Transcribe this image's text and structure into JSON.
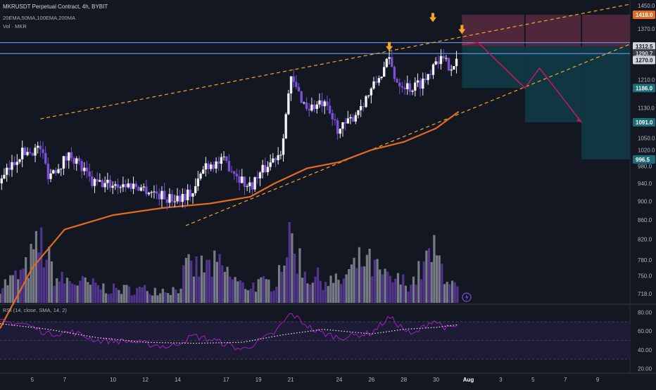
{
  "header": {
    "title": "MKRUSDT Perpetual Contract, 4h, BYBIT",
    "ema_label": "20EMA,50MA,100EMA,200MA",
    "vol_label": "Vol · MKR"
  },
  "rsi_label": "RSI (14, close, SMA, 14, 2)",
  "colors": {
    "background": "#131722",
    "bull_candle": "#f2f2f7",
    "bear_candle": "#7b4fd6",
    "ma": "#e36b1e",
    "trendline": "#f5a623",
    "level_line": "#5b8fe6",
    "zigzag": "#c2185b",
    "rsi_line": "#a020c0",
    "rsi_band": "#1e1b36",
    "rsi_ma": "#e6e6e6",
    "stop_zone": "#5a2a3e",
    "target_zone": "#0f3c46",
    "marker": "#f5a623"
  },
  "chart_data": [
    {
      "type": "candlestick",
      "symbol": "MKRUSDT Perpetual Contract",
      "timeframe": "4h",
      "exchange": "BYBIT",
      "x_axis": {
        "ticks": [
          {
            "label": "5",
            "day": 5
          },
          {
            "label": "7",
            "day": 7
          },
          {
            "label": "10",
            "day": 10
          },
          {
            "label": "12",
            "day": 12
          },
          {
            "label": "14",
            "day": 14
          },
          {
            "label": "17",
            "day": 17
          },
          {
            "label": "19",
            "day": 19
          },
          {
            "label": "21",
            "day": 21
          },
          {
            "label": "24",
            "day": 24
          },
          {
            "label": "26",
            "day": 26
          },
          {
            "label": "28",
            "day": 28
          },
          {
            "label": "30",
            "day": 30
          },
          {
            "label": "Aug",
            "day": 32,
            "bold": true
          },
          {
            "label": "3",
            "day": 34
          },
          {
            "label": "5",
            "day": 36
          },
          {
            "label": "7",
            "day": 38
          },
          {
            "label": "9",
            "day": 40
          }
        ]
      },
      "y_axis": {
        "ticks": [
          1450,
          1370,
          1290,
          1210,
          1130,
          1050,
          1020,
          980,
          940,
          900,
          860,
          820,
          780,
          750,
          718
        ]
      },
      "price_labels": [
        {
          "text": "1418.0",
          "value": 1418,
          "style": "orange"
        },
        {
          "text": "1312.5",
          "value": 1312.5,
          "style": "light"
        },
        {
          "text": "1290.7",
          "value": 1290.7,
          "style": "dim"
        },
        {
          "text": "1270.0",
          "value": 1270,
          "style": "light"
        },
        {
          "text": "1186.0",
          "value": 1186,
          "style": "teal"
        },
        {
          "text": "1091.0",
          "value": 1091,
          "style": "teal"
        },
        {
          "text": "996.5",
          "value": 996.5,
          "style": "teal"
        }
      ],
      "candle_keypoints": [
        {
          "day": 3.0,
          "price": 940
        },
        {
          "day": 4.2,
          "price": 1010
        },
        {
          "day": 5.5,
          "price": 1025
        },
        {
          "day": 6.0,
          "price": 960
        },
        {
          "day": 7.4,
          "price": 1010
        },
        {
          "day": 8.7,
          "price": 940
        },
        {
          "day": 11.5,
          "price": 935
        },
        {
          "day": 13.5,
          "price": 905
        },
        {
          "day": 15.0,
          "price": 920
        },
        {
          "day": 15.7,
          "price": 985
        },
        {
          "day": 17.0,
          "price": 990
        },
        {
          "day": 18.4,
          "price": 930
        },
        {
          "day": 20.4,
          "price": 1020
        },
        {
          "day": 21.0,
          "price": 1210
        },
        {
          "day": 22.0,
          "price": 1130
        },
        {
          "day": 23.0,
          "price": 1140
        },
        {
          "day": 24.0,
          "price": 1070
        },
        {
          "day": 24.6,
          "price": 1090
        },
        {
          "day": 26.0,
          "price": 1180
        },
        {
          "day": 27.1,
          "price": 1270
        },
        {
          "day": 27.5,
          "price": 1210
        },
        {
          "day": 28.5,
          "price": 1185
        },
        {
          "day": 29.4,
          "price": 1215
        },
        {
          "day": 30.0,
          "price": 1280
        },
        {
          "day": 30.8,
          "price": 1255
        },
        {
          "day": 31.4,
          "price": 1270
        }
      ],
      "moving_average": {
        "name": "200MA",
        "points": [
          {
            "day": 3.0,
            "price": 660
          },
          {
            "day": 5.0,
            "price": 765
          },
          {
            "day": 7.0,
            "price": 840
          },
          {
            "day": 10.0,
            "price": 870
          },
          {
            "day": 13.0,
            "price": 885
          },
          {
            "day": 16.0,
            "price": 895
          },
          {
            "day": 18.5,
            "price": 910
          },
          {
            "day": 20.0,
            "price": 940
          },
          {
            "day": 22.0,
            "price": 975
          },
          {
            "day": 24.0,
            "price": 990
          },
          {
            "day": 26.0,
            "price": 1020
          },
          {
            "day": 28.0,
            "price": 1040
          },
          {
            "day": 30.0,
            "price": 1075
          },
          {
            "day": 31.4,
            "price": 1120
          }
        ]
      },
      "trendlines": [
        {
          "from": {
            "day": 5.5,
            "price": 1100
          },
          "to": {
            "day": 42.0,
            "price": 1455
          }
        },
        {
          "from": {
            "day": 14.5,
            "price": 848
          },
          "to": {
            "day": 42.0,
            "price": 1320
          }
        }
      ],
      "horizontal_levels": [
        1325,
        1290
      ],
      "arrow_markers": [
        {
          "day": 27.1,
          "price": 1300
        },
        {
          "day": 29.8,
          "price": 1395
        },
        {
          "day": 31.6,
          "price": 1355
        }
      ],
      "zigzag_projection": [
        {
          "day": 31.6,
          "price": 1318
        },
        {
          "day": 32.6,
          "price": 1325
        },
        {
          "day": 35.5,
          "price": 1186
        },
        {
          "day": 36.4,
          "price": 1245
        },
        {
          "day": 39.0,
          "price": 1091
        }
      ],
      "zones": [
        {
          "kind": "stop",
          "from_day": 31.6,
          "to_day": 42.0,
          "top": 1418,
          "bottom": 1312.5
        },
        {
          "kind": "target",
          "from_day": 31.6,
          "to_day": 35.5,
          "top": 1312.5,
          "bottom": 1186
        },
        {
          "kind": "target",
          "from_day": 35.5,
          "to_day": 39.0,
          "top": 1312.5,
          "bottom": 1091
        },
        {
          "kind": "target",
          "from_day": 39.0,
          "to_day": 42.0,
          "top": 1312.5,
          "bottom": 996.5
        }
      ],
      "volume_keypoints": [
        {
          "day": 3.0,
          "v": 0.25
        },
        {
          "day": 4.5,
          "v": 0.45
        },
        {
          "day": 5.5,
          "v": 0.9
        },
        {
          "day": 6.5,
          "v": 0.35
        },
        {
          "day": 8.0,
          "v": 0.3
        },
        {
          "day": 10.0,
          "v": 0.2
        },
        {
          "day": 12.0,
          "v": 0.2
        },
        {
          "day": 14.0,
          "v": 0.2
        },
        {
          "day": 14.5,
          "v": 0.5
        },
        {
          "day": 16.5,
          "v": 0.55
        },
        {
          "day": 18.0,
          "v": 0.25
        },
        {
          "day": 20.0,
          "v": 0.3
        },
        {
          "day": 20.9,
          "v": 1.0
        },
        {
          "day": 22.0,
          "v": 0.4
        },
        {
          "day": 24.0,
          "v": 0.3
        },
        {
          "day": 25.5,
          "v": 0.65
        },
        {
          "day": 27.0,
          "v": 0.35
        },
        {
          "day": 28.5,
          "v": 0.3
        },
        {
          "day": 29.8,
          "v": 0.75
        },
        {
          "day": 31.4,
          "v": 0.15
        }
      ]
    },
    {
      "type": "line",
      "title": "RSI (14, close, SMA, 14, 2)",
      "y_axis": {
        "ticks": [
          80,
          60,
          40,
          20
        ]
      },
      "band": [
        30,
        70
      ],
      "series": [
        {
          "name": "RSI",
          "points": [
            {
              "day": 3.0,
              "value": 70
            },
            {
              "day": 4.5,
              "value": 68
            },
            {
              "day": 6.0,
              "value": 57
            },
            {
              "day": 7.5,
              "value": 59
            },
            {
              "day": 9.0,
              "value": 50
            },
            {
              "day": 11.0,
              "value": 49
            },
            {
              "day": 13.5,
              "value": 43
            },
            {
              "day": 15.0,
              "value": 55
            },
            {
              "day": 16.5,
              "value": 49
            },
            {
              "day": 18.0,
              "value": 40
            },
            {
              "day": 20.0,
              "value": 58
            },
            {
              "day": 21.0,
              "value": 79
            },
            {
              "day": 22.5,
              "value": 60
            },
            {
              "day": 24.0,
              "value": 53
            },
            {
              "day": 26.0,
              "value": 58
            },
            {
              "day": 27.1,
              "value": 75
            },
            {
              "day": 28.5,
              "value": 55
            },
            {
              "day": 29.8,
              "value": 72
            },
            {
              "day": 30.8,
              "value": 62
            },
            {
              "day": 31.4,
              "value": 66
            }
          ]
        },
        {
          "name": "RSI-based MA",
          "points": [
            {
              "day": 3.0,
              "value": 68
            },
            {
              "day": 6.0,
              "value": 62
            },
            {
              "day": 9.0,
              "value": 53
            },
            {
              "day": 12.0,
              "value": 48
            },
            {
              "day": 15.0,
              "value": 47
            },
            {
              "day": 18.0,
              "value": 48
            },
            {
              "day": 20.5,
              "value": 56
            },
            {
              "day": 23.0,
              "value": 62
            },
            {
              "day": 26.0,
              "value": 57
            },
            {
              "day": 28.0,
              "value": 62
            },
            {
              "day": 30.0,
              "value": 64
            },
            {
              "day": 31.4,
              "value": 67
            }
          ]
        }
      ]
    }
  ]
}
